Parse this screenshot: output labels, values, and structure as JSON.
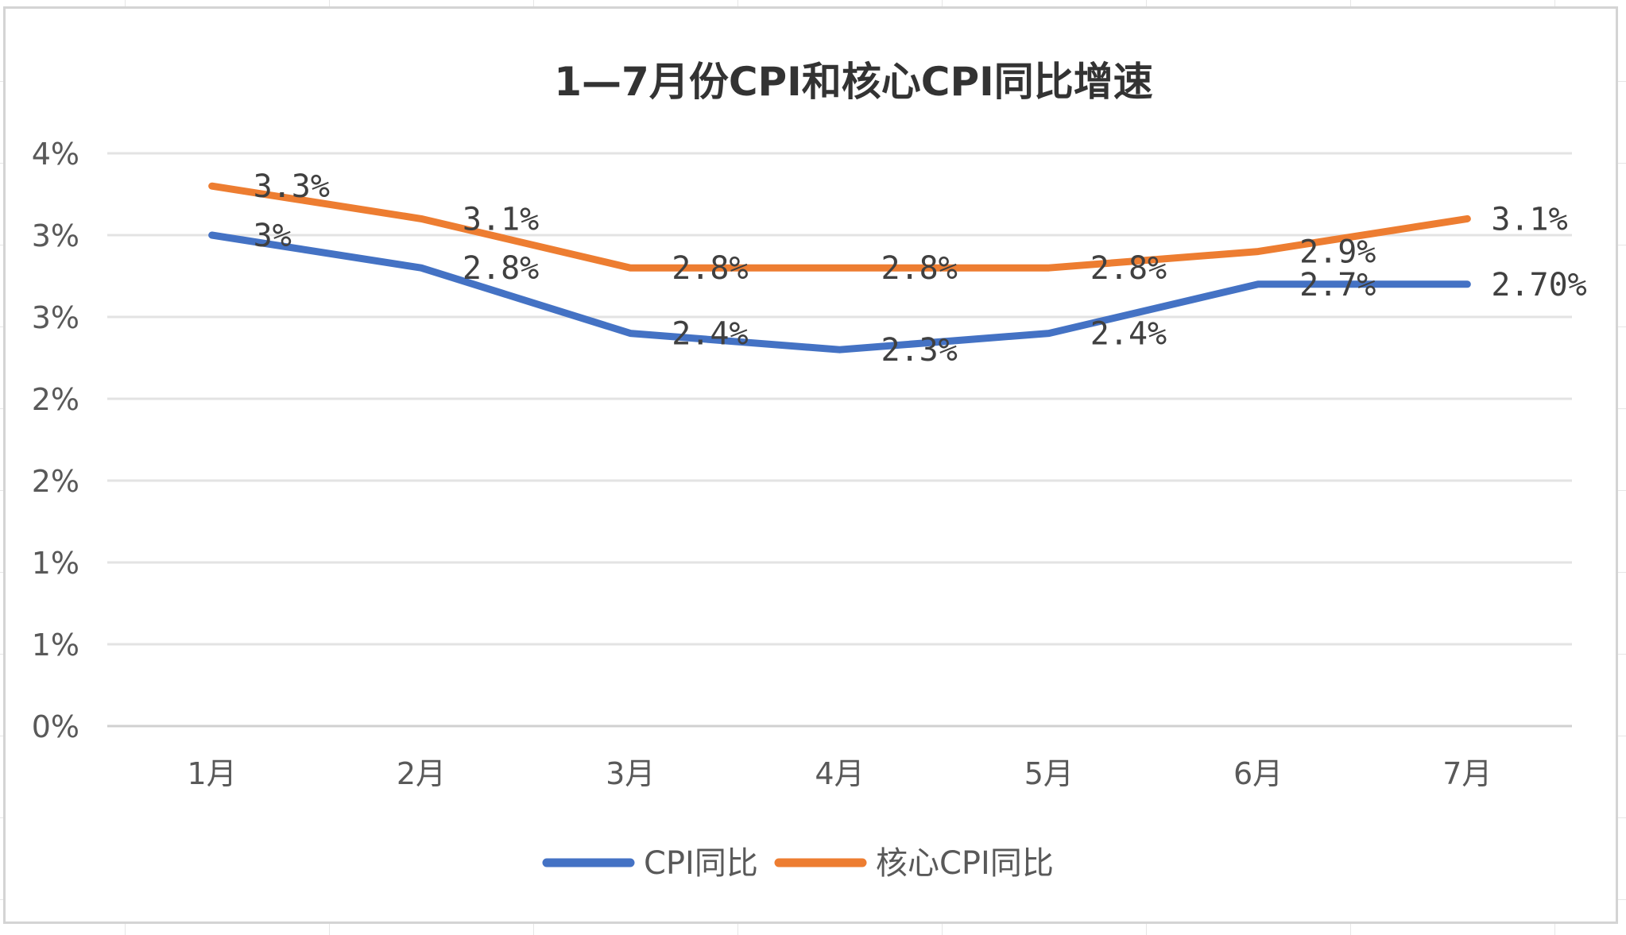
{
  "chart_data": {
    "type": "line",
    "title": "1—7月份CPI和核心CPI同比增速",
    "categories": [
      "1月",
      "2月",
      "3月",
      "4月",
      "5月",
      "6月",
      "7月"
    ],
    "y_tick_labels": [
      "0%",
      "1%",
      "1%",
      "2%",
      "2%",
      "3%",
      "3%",
      "4%"
    ],
    "ylim": [
      0,
      3.5
    ],
    "grid": true,
    "legend_position": "bottom",
    "series": [
      {
        "name": "CPI同比",
        "color": "#4472C4",
        "values": [
          3.0,
          2.8,
          2.4,
          2.3,
          2.4,
          2.7,
          2.7
        ],
        "labels": [
          "3%",
          "2.8%",
          "2.4%",
          "2.3%",
          "2.4%",
          "2.7%",
          "2.70%"
        ]
      },
      {
        "name": "核心CPI同比",
        "color": "#ED7D31",
        "values": [
          3.3,
          3.1,
          2.8,
          2.8,
          2.8,
          2.9,
          3.1
        ],
        "labels": [
          "3.3%",
          "3.1%",
          "2.8%",
          "2.8%",
          "2.8%",
          "2.9%",
          "3.1%"
        ]
      }
    ]
  }
}
